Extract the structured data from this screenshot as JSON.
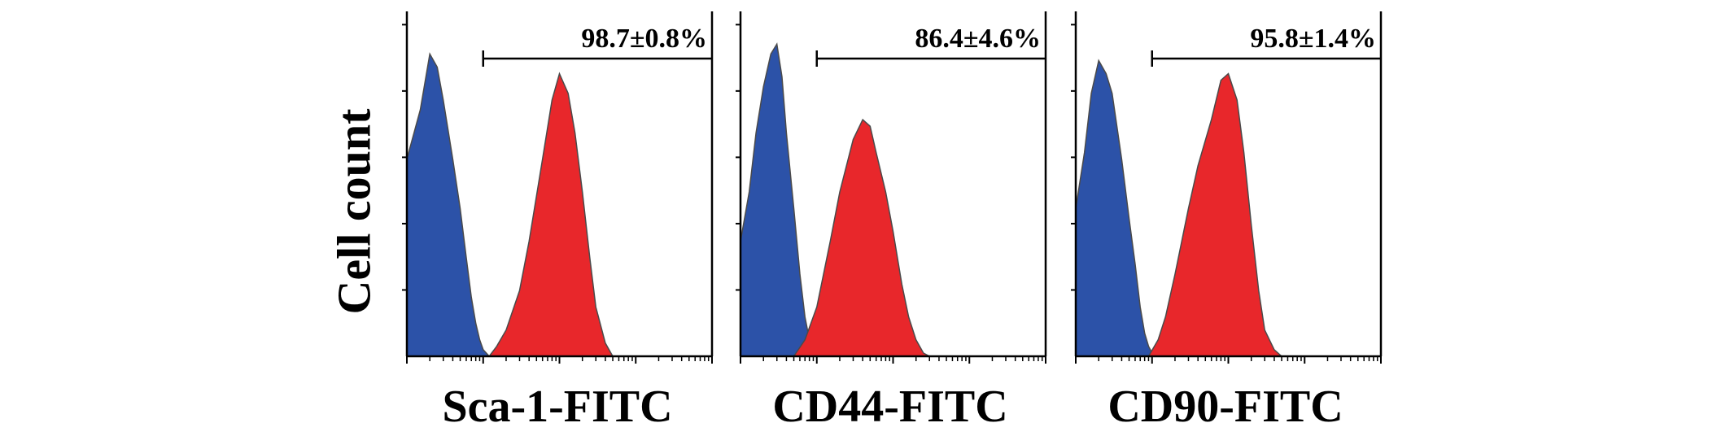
{
  "figure": {
    "ylabel": "Cell count",
    "colors": {
      "isotype": "#2c52a8",
      "marker": "#e8272b",
      "outline": "#4a4a4a",
      "axis": "#000000"
    }
  },
  "chart_data": [
    {
      "type": "area",
      "xlabel": "Sca-1-FITC",
      "ylabel": "Cell count",
      "x_scale": "log",
      "xlim": [
        1,
        10000
      ],
      "ylim": [
        0,
        100
      ],
      "grid": false,
      "gate_annotation": "98.7±0.8%",
      "gate_range": [
        10,
        10000
      ],
      "series": [
        {
          "color": "#2c52a8",
          "x": [
            1,
            1.5,
            2,
            2.5,
            3,
            4,
            5,
            6,
            7,
            8,
            9,
            10,
            12
          ],
          "values": [
            60,
            75,
            92,
            88,
            78,
            60,
            45,
            30,
            18,
            10,
            5,
            2,
            0
          ]
        },
        {
          "color": "#e8272b",
          "x": [
            12,
            15,
            20,
            30,
            40,
            60,
            80,
            100,
            130,
            160,
            200,
            250,
            300,
            400,
            500
          ],
          "values": [
            0,
            3,
            8,
            20,
            35,
            60,
            78,
            86,
            80,
            68,
            50,
            30,
            15,
            4,
            0
          ]
        }
      ]
    },
    {
      "type": "area",
      "xlabel": "CD44-FITC",
      "ylabel": "Cell count",
      "x_scale": "log",
      "xlim": [
        1,
        10000
      ],
      "ylim": [
        0,
        100
      ],
      "grid": false,
      "gate_annotation": "86.4±4.6%",
      "gate_range": [
        10,
        10000
      ],
      "series": [
        {
          "color": "#2c52a8",
          "x": [
            1,
            1.3,
            1.6,
            2,
            2.5,
            3,
            3.5,
            4,
            5,
            6,
            7,
            8,
            10
          ],
          "values": [
            35,
            50,
            68,
            82,
            92,
            95,
            85,
            68,
            45,
            25,
            12,
            5,
            0
          ]
        },
        {
          "color": "#e8272b",
          "x": [
            5,
            7,
            10,
            15,
            20,
            30,
            40,
            50,
            60,
            80,
            100,
            130,
            160,
            200,
            250,
            300
          ],
          "values": [
            0,
            5,
            15,
            35,
            50,
            66,
            72,
            70,
            62,
            50,
            38,
            22,
            12,
            5,
            1,
            0
          ]
        }
      ]
    },
    {
      "type": "area",
      "xlabel": "CD90-FITC",
      "ylabel": "Cell count",
      "x_scale": "log",
      "xlim": [
        1,
        10000
      ],
      "ylim": [
        0,
        100
      ],
      "grid": false,
      "gate_annotation": "95.8±1.4%",
      "gate_range": [
        10,
        10000
      ],
      "series": [
        {
          "color": "#2c52a8",
          "x": [
            1,
            1.3,
            1.6,
            2,
            2.5,
            3,
            4,
            5,
            6,
            7,
            8,
            9,
            10,
            12
          ],
          "values": [
            45,
            62,
            80,
            90,
            86,
            80,
            60,
            42,
            28,
            15,
            7,
            3,
            1,
            0
          ]
        },
        {
          "color": "#e8272b",
          "x": [
            9,
            12,
            15,
            20,
            30,
            40,
            60,
            80,
            100,
            130,
            160,
            200,
            250,
            300,
            400,
            500
          ],
          "values": [
            0,
            5,
            12,
            25,
            45,
            58,
            72,
            84,
            86,
            78,
            62,
            40,
            20,
            8,
            2,
            0
          ]
        }
      ]
    }
  ]
}
